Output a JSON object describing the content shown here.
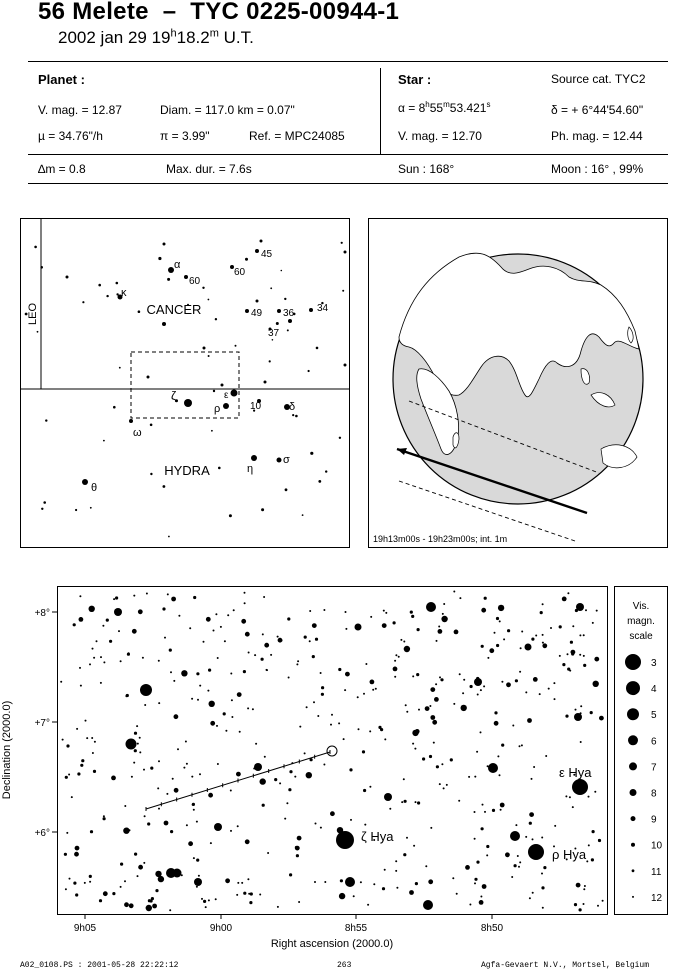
{
  "header": {
    "title": "56 Melete  –  TYC 0225-00944-1",
    "date": "2002 jan 29  19",
    "hour_unit": "h",
    "minutes": "18.2",
    "min_unit": "m",
    "time_system": " U.T."
  },
  "planet": {
    "label": "Planet :",
    "vmag": "V. mag. = 12.87",
    "diam": "Diam. = 117.0 km = 0.07\"",
    "mu": "µ =  34.76\"/h",
    "pi": "π =  3.99\"",
    "ref": "Ref. = MPC24085"
  },
  "star": {
    "label": "Star :",
    "source": "Source cat.  TYC2",
    "ra_prefix": "α =  8",
    "ra_h": "h",
    "ra_mid": "55",
    "ra_m": "m",
    "ra_s": "53.421",
    "ra_s_sup": "s",
    "dec": "δ = + 6°44'54.60\"",
    "vmag": "V. mag. = 12.70",
    "phmag": "Ph. mag. = 12.44"
  },
  "summary": {
    "dm": "∆m = 0.8",
    "maxdur": "Max. dur. = 7.6s",
    "sun": "Sun : 168°",
    "moon": "Moon :  16° , 99%"
  },
  "finder": {
    "constellation_cancer": "CANCER",
    "constellation_hydra": "HYDRA",
    "constellation_leo": "LEO",
    "labels": {
      "alpha": "α",
      "kappa": "κ",
      "n60a": "60",
      "n60b": "60",
      "n45": "45",
      "n49": "49",
      "n36": "36",
      "n34": "34",
      "n37": "37",
      "zeta": "ζ",
      "epsilon": "ε",
      "rho": "ρ",
      "n10": "10",
      "delta": "δ",
      "omega": "ω",
      "sigma": "σ",
      "eta": "η",
      "theta": "θ"
    }
  },
  "globe": {
    "caption": "19h13m00s - 19h23m00s; int.  1m"
  },
  "starchart": {
    "xlabel": "Right ascension (2000.0)",
    "ylabel": "Declination (2000.0)",
    "xticks": [
      "9h05",
      "9h00",
      "8h55",
      "8h50"
    ],
    "yticks": [
      "+8°",
      "+7°",
      "+6°"
    ],
    "star_labels": {
      "zeta": "ζ Hya",
      "epsilon": "ε Hya",
      "rho": "ρ Hya"
    }
  },
  "magscale": {
    "title1": "Vis.",
    "title2": "magn.",
    "title3": "scale",
    "levels": [
      "3",
      "4",
      "5",
      "6",
      "7",
      "8",
      "9",
      "10",
      "11",
      "12"
    ]
  },
  "footer": {
    "left": "A02_0108.PS : 2001-05-28 22:22:12",
    "center": "263",
    "right": "Agfa-Gevaert N.V., Mortsel, Belgium"
  }
}
